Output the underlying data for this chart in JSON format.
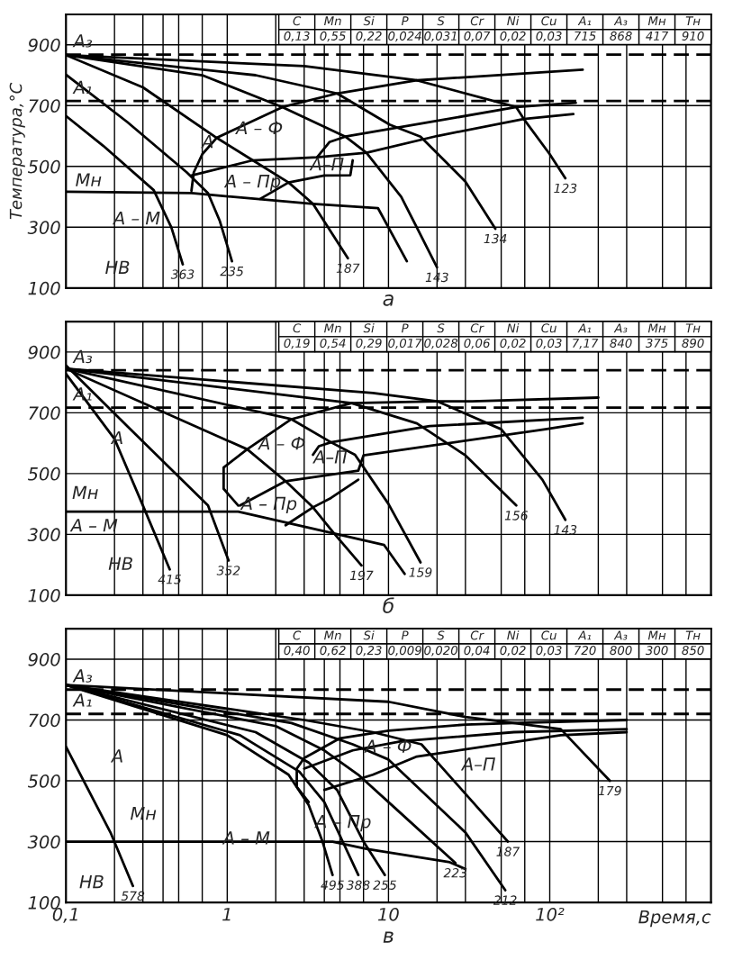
{
  "chart_data": [
    {
      "type": "line",
      "subtitle": "а",
      "ylabel": "Температура,°C",
      "log": "x",
      "xlim": [
        0.1,
        1000
      ],
      "ylim": [
        100,
        1000
      ],
      "grid": true,
      "tick_labels": "y",
      "xticks": [
        {
          "value": 0.1,
          "label": null
        },
        {
          "value": 0.2,
          "label": null
        },
        {
          "value": 0.3,
          "label": null
        },
        {
          "value": 0.4,
          "label": null
        },
        {
          "value": 0.5,
          "label": null
        },
        {
          "value": 0.7,
          "label": null
        },
        {
          "value": 1,
          "label": null
        },
        {
          "value": 2,
          "label": null
        },
        {
          "value": 3,
          "label": null
        },
        {
          "value": 4,
          "label": null
        },
        {
          "value": 5,
          "label": null
        },
        {
          "value": 7,
          "label": null
        },
        {
          "value": 10,
          "label": null
        },
        {
          "value": 20,
          "label": null
        },
        {
          "value": 30,
          "label": null
        },
        {
          "value": 50,
          "label": null
        },
        {
          "value": 70,
          "label": null
        },
        {
          "value": 100,
          "label": null
        },
        {
          "value": 200,
          "label": null
        },
        {
          "value": 300,
          "label": null
        },
        {
          "value": 500,
          "label": null
        },
        {
          "value": 700,
          "label": null
        },
        {
          "value": 1000,
          "label": null
        }
      ],
      "yticks": [
        100,
        300,
        500,
        700,
        900
      ],
      "ref_lines": [
        {
          "axis": "y",
          "value": 868,
          "label": "A₃",
          "line_style": "dashed"
        },
        {
          "axis": "y",
          "value": 715,
          "label": "A₁",
          "line_style": "dashed"
        }
      ],
      "series": [
        {
          "name": "363",
          "color": "#000000",
          "x": [
            0.1,
            0.17,
            0.35,
            0.45,
            0.53
          ],
          "values": [
            666,
            568,
            422,
            300,
            178
          ]
        },
        {
          "name": "235",
          "color": "#000000",
          "x": [
            0.1,
            0.24,
            0.56,
            0.76,
            0.9,
            1.07
          ],
          "values": [
            802,
            646,
            481,
            412,
            320,
            188
          ]
        },
        {
          "name": "187",
          "color": "#000000",
          "x": [
            0.1,
            0.3,
            0.86,
            1.44,
            2.4,
            3.4,
            5.6
          ],
          "values": [
            866,
            760,
            594,
            520,
            447,
            377,
            198
          ]
        },
        {
          "name": "143",
          "color": "#000000",
          "x": [
            0.1,
            0.7,
            2.2,
            5.4,
            7.3,
            12,
            20
          ],
          "values": [
            866,
            800,
            695,
            598,
            545,
            400,
            168
          ]
        },
        {
          "name": "134",
          "color": "#000000",
          "x": [
            0.1,
            1.5,
            4.8,
            10.2,
            15.8,
            30,
            46
          ],
          "values": [
            866,
            800,
            740,
            637,
            598,
            450,
            295
          ]
        },
        {
          "name": "123",
          "color": "#000000",
          "x": [
            0.1,
            3,
            15,
            62,
            69,
            100,
            125
          ],
          "values": [
            866,
            830,
            783,
            695,
            656,
            540,
            461
          ]
        },
        {
          "color": "#000000",
          "x": [
            0.6,
            0.62,
            0.7,
            0.86,
            2.2,
            4.8,
            15,
            160
          ],
          "values": [
            420,
            480,
            540,
            594,
            695,
            740,
            783,
            818
          ]
        },
        {
          "color": "#000000",
          "x": [
            3.6,
            4.3,
            5.4,
            20,
            62,
            145
          ],
          "values": [
            529,
            580,
            598,
            650,
            695,
            709
          ]
        },
        {
          "color": "#000000",
          "x": [
            0.6,
            1.44,
            3.6,
            7.3,
            20,
            69,
            140
          ],
          "values": [
            470,
            520,
            530,
            545,
            600,
            656,
            672
          ]
        },
        {
          "color": "#000000",
          "x": [
            1.6,
            2.4,
            4,
            5.8,
            6
          ],
          "values": [
            393,
            447,
            470,
            471,
            520
          ]
        },
        {
          "color": "#000000",
          "x": [
            0.1,
            0.6,
            3.4,
            8.6,
            13
          ],
          "values": [
            417,
            412,
            377,
            363,
            188
          ]
        }
      ],
      "annotations": [
        "C",
        "Mn",
        "Si",
        "P",
        "S",
        "Cr",
        "Ni",
        "Cu",
        "A₁",
        "A₃",
        "Мн",
        "Тн",
        "0,13",
        "0,55",
        "0,22",
        "0,024",
        "0,031",
        "0,07",
        "0,02",
        "0,03",
        "715",
        "868",
        "417",
        "910",
        "А",
        "А – Ф",
        "А–П",
        "А – Пр",
        "Мн",
        "А – М",
        "НВ"
      ]
    },
    {
      "type": "line",
      "subtitle": "б",
      "log": "x",
      "xlim": [
        0.1,
        1000
      ],
      "ylim": [
        100,
        1000
      ],
      "grid": true,
      "tick_labels": "y",
      "xticks": [
        {
          "value": 0.1,
          "label": null
        },
        {
          "value": 0.2,
          "label": null
        },
        {
          "value": 0.3,
          "label": null
        },
        {
          "value": 0.4,
          "label": null
        },
        {
          "value": 0.5,
          "label": null
        },
        {
          "value": 0.7,
          "label": null
        },
        {
          "value": 1,
          "label": null
        },
        {
          "value": 2,
          "label": null
        },
        {
          "value": 3,
          "label": null
        },
        {
          "value": 4,
          "label": null
        },
        {
          "value": 5,
          "label": null
        },
        {
          "value": 7,
          "label": null
        },
        {
          "value": 10,
          "label": null
        },
        {
          "value": 20,
          "label": null
        },
        {
          "value": 30,
          "label": null
        },
        {
          "value": 50,
          "label": null
        },
        {
          "value": 70,
          "label": null
        },
        {
          "value": 100,
          "label": null
        },
        {
          "value": 200,
          "label": null
        },
        {
          "value": 300,
          "label": null
        },
        {
          "value": 500,
          "label": null
        },
        {
          "value": 700,
          "label": null
        },
        {
          "value": 1000,
          "label": null
        }
      ],
      "yticks": [
        100,
        300,
        500,
        700,
        900
      ],
      "ref_lines": [
        {
          "axis": "y",
          "value": 840,
          "label": "A₃",
          "line_style": "dashed"
        },
        {
          "axis": "y",
          "value": 717,
          "label": "A₁",
          "line_style": "dashed"
        }
      ],
      "series": [
        {
          "name": "415",
          "color": "#000000",
          "x": [
            0.1,
            0.2,
            0.3,
            0.44
          ],
          "values": [
            828,
            614,
            395,
            185
          ]
        },
        {
          "name": "352",
          "color": "#000000",
          "x": [
            0.1,
            0.24,
            0.76,
            1.02
          ],
          "values": [
            856,
            656,
            395,
            214
          ]
        },
        {
          "name": "197",
          "color": "#000000",
          "x": [
            0.1,
            1.33,
            2.3,
            3.4,
            4.6,
            6.8
          ],
          "values": [
            845,
            580,
            475,
            389,
            303,
            198
          ]
        },
        {
          "name": "159",
          "color": "#000000",
          "x": [
            0.1,
            2.5,
            4.4,
            6.2,
            10,
            15.8
          ],
          "values": [
            845,
            679,
            603,
            562,
            400,
            208
          ]
        },
        {
          "name": "156",
          "color": "#000000",
          "x": [
            0.1,
            5.9,
            15,
            30,
            62
          ],
          "values": [
            845,
            732,
            665,
            560,
            395
          ]
        },
        {
          "name": "143",
          "color": "#000000",
          "x": [
            0.1,
            8,
            20,
            50,
            90,
            125
          ],
          "values": [
            845,
            765,
            738,
            646,
            480,
            348
          ]
        },
        {
          "color": "#000000",
          "x": [
            1.17,
            0.95,
            0.95,
            1.33,
            2.5,
            5.9,
            20,
            33,
            200
          ],
          "values": [
            395,
            450,
            520,
            580,
            679,
            732,
            738,
            738,
            750
          ]
        },
        {
          "color": "#000000",
          "x": [
            3.4,
            3.7,
            4.4,
            18,
            160
          ],
          "values": [
            562,
            590,
            603,
            656,
            684
          ]
        },
        {
          "color": "#000000",
          "x": [
            1.2,
            2.3,
            6.5,
            7,
            94,
            160
          ],
          "values": [
            395,
            475,
            510,
            560,
            646,
            665
          ]
        },
        {
          "color": "#000000",
          "x": [
            2.3,
            3.4,
            4.4,
            6.5
          ],
          "values": [
            330,
            389,
            420,
            480
          ]
        },
        {
          "color": "#000000",
          "x": [
            0.1,
            1.17,
            4.6,
            9.4,
            12.6
          ],
          "values": [
            375,
            375,
            303,
            265,
            170
          ]
        }
      ],
      "annotations": [
        "C",
        "Mn",
        "Si",
        "P",
        "S",
        "Cr",
        "Ni",
        "Cu",
        "A₁",
        "A₃",
        "Мн",
        "Тн",
        "0,19",
        "0,54",
        "0,29",
        "0,017",
        "0,028",
        "0,06",
        "0,02",
        "0,03",
        "7,17",
        "840",
        "375",
        "890",
        "А",
        "А – Ф",
        "А–П",
        "А – Пр",
        "Мн",
        "А – М",
        "НВ"
      ]
    },
    {
      "type": "line",
      "subtitle": "в",
      "xlabel": "Время,с",
      "log": "x",
      "xlim": [
        0.1,
        1000
      ],
      "ylim": [
        100,
        1000
      ],
      "grid": true,
      "xticks": [
        {
          "value": 0.1,
          "label": "0,1"
        },
        {
          "value": 0.2,
          "label": null
        },
        {
          "value": 0.3,
          "label": null
        },
        {
          "value": 0.4,
          "label": null
        },
        {
          "value": 0.5,
          "label": null
        },
        {
          "value": 0.7,
          "label": null
        },
        {
          "value": 1,
          "label": "1"
        },
        {
          "value": 2,
          "label": null
        },
        {
          "value": 3,
          "label": null
        },
        {
          "value": 4,
          "label": null
        },
        {
          "value": 5,
          "label": null
        },
        {
          "value": 7,
          "label": null
        },
        {
          "value": 10,
          "label": "10"
        },
        {
          "value": 20,
          "label": null
        },
        {
          "value": 30,
          "label": null
        },
        {
          "value": 50,
          "label": null
        },
        {
          "value": 70,
          "label": null
        },
        {
          "value": 100,
          "label": "10²"
        },
        {
          "value": 200,
          "label": null
        },
        {
          "value": 300,
          "label": null
        },
        {
          "value": 500,
          "label": null
        },
        {
          "value": 700,
          "label": null
        },
        {
          "value": 1000,
          "label": null
        }
      ],
      "yticks": [
        100,
        300,
        500,
        700,
        900
      ],
      "ref_lines": [
        {
          "axis": "y",
          "value": 800,
          "label": "A₃",
          "line_style": "dashed"
        },
        {
          "axis": "y",
          "value": 720,
          "label": "A₁",
          "line_style": "dashed"
        }
      ],
      "series": [
        {
          "name": "578",
          "color": "#000000",
          "x": [
            0.1,
            0.19,
            0.26
          ],
          "values": [
            612,
            327,
            154
          ]
        },
        {
          "name": "495",
          "color": "#000000",
          "x": [
            0.1,
            1,
            2.4,
            3.2,
            3.9,
            4.5
          ],
          "values": [
            815,
            650,
            520,
            420,
            300,
            190
          ]
        },
        {
          "name": "388",
          "color": "#000000",
          "x": [
            0.1,
            1.2,
            2.8,
            4,
            5.2,
            6.5
          ],
          "values": [
            815,
            650,
            530,
            430,
            300,
            190
          ]
        },
        {
          "name": "255",
          "color": "#000000",
          "x": [
            0.1,
            1.5,
            3.2,
            4.8,
            7,
            9.5
          ],
          "values": [
            815,
            660,
            560,
            470,
            300,
            190
          ]
        },
        {
          "name": "223",
          "color": "#000000",
          "x": [
            0.1,
            2,
            4,
            6.5,
            11,
            26
          ],
          "values": [
            815,
            680,
            600,
            520,
            410,
            230
          ]
        },
        {
          "name": "212",
          "color": "#000000",
          "x": [
            0.1,
            2.5,
            6,
            10,
            30,
            53
          ],
          "values": [
            815,
            690,
            620,
            570,
            330,
            140
          ]
        },
        {
          "name": "187",
          "color": "#000000",
          "x": [
            0.1,
            3,
            8,
            16,
            55
          ],
          "values": [
            815,
            700,
            660,
            620,
            300
          ]
        },
        {
          "name": "179",
          "color": "#000000",
          "x": [
            0.1,
            10,
            30,
            60,
            117,
            236
          ],
          "values": [
            815,
            760,
            710,
            690,
            670,
            500
          ]
        },
        {
          "color": "#000000",
          "x": [
            3.2,
            2.7,
            2.7,
            3,
            5,
            10,
            30,
            60,
            300
          ],
          "values": [
            430,
            480,
            540,
            575,
            640,
            665,
            685,
            690,
            700
          ]
        },
        {
          "color": "#000000",
          "x": [
            3,
            6,
            12,
            60,
            300
          ],
          "values": [
            540,
            600,
            630,
            660,
            670
          ]
        },
        {
          "color": "#000000",
          "x": [
            4,
            8,
            15,
            117,
            300
          ],
          "values": [
            470,
            520,
            580,
            650,
            660
          ]
        },
        {
          "color": "#000000",
          "x": [
            0.1,
            4.5,
            7.3,
            24,
            30
          ],
          "values": [
            300,
            300,
            276,
            232,
            210
          ]
        }
      ],
      "annotations": [
        "C",
        "Mn",
        "Si",
        "P",
        "S",
        "Cr",
        "Ni",
        "Cu",
        "A₁",
        "A₃",
        "Мн",
        "Тн",
        "0,40",
        "0,62",
        "0,23",
        "0,009",
        "0,020",
        "0,04",
        "0,02",
        "0,03",
        "720",
        "800",
        "300",
        "850",
        "А",
        "А – Ф",
        "А–П",
        "А – Пр",
        "Мн",
        "А – М",
        "НВ"
      ]
    }
  ]
}
